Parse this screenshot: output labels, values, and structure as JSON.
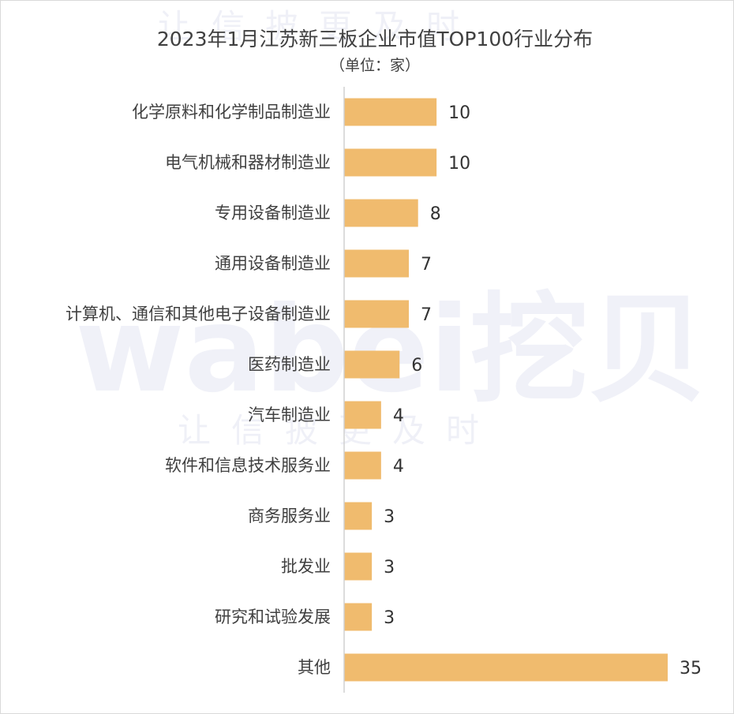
{
  "watermark": {
    "brand": "wabei挖贝",
    "slogan": "让信披更及时"
  },
  "chart_data": {
    "type": "bar",
    "orientation": "horizontal",
    "title": "2023年1月江苏新三板企业市值TOP100行业分布",
    "subtitle": "（单位：家）",
    "categories": [
      "化学原料和化学制品制造业",
      "电气机械和器材制造业",
      "专用设备制造业",
      "通用设备制造业",
      "计算机、通信和其他电子设备制造业",
      "医药制造业",
      "汽车制造业",
      "软件和信息技术服务业",
      "商务服务业",
      "批发业",
      "研究和试验发展",
      "其他"
    ],
    "values": [
      10,
      10,
      8,
      7,
      7,
      6,
      4,
      4,
      3,
      3,
      3,
      35
    ],
    "xlim": [
      0,
      35
    ],
    "grid": false,
    "legend": "none",
    "bar_color": "#f0bb6e",
    "axis_color": "#d0d0d0"
  }
}
